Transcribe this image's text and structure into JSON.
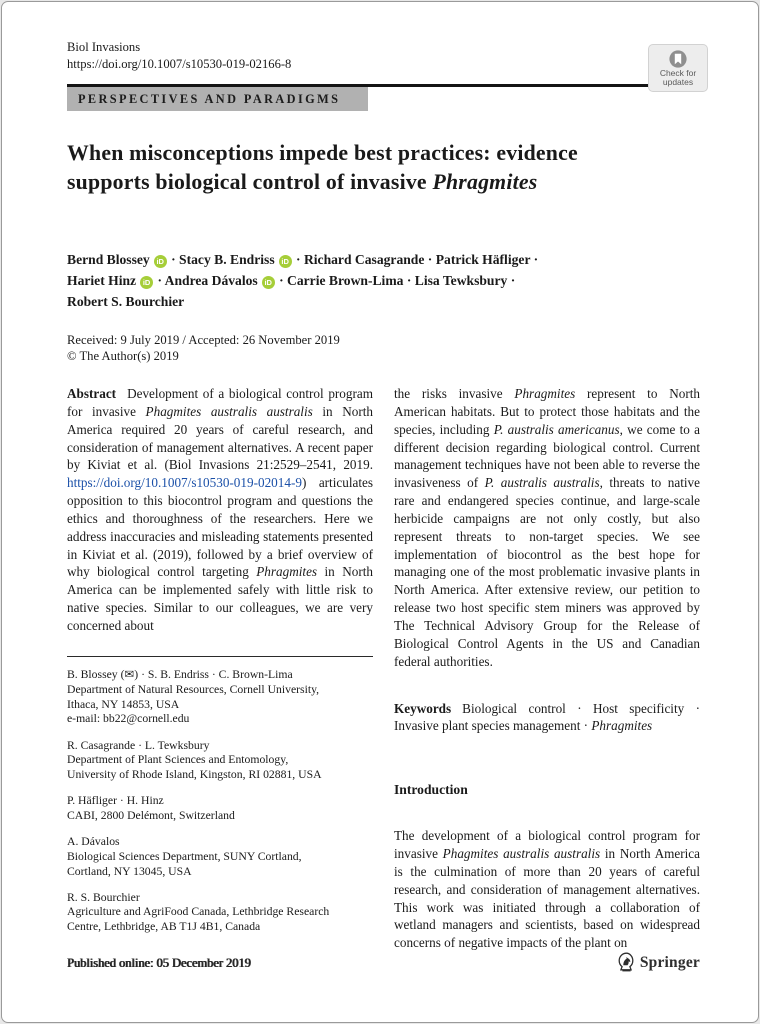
{
  "colors": {
    "link_blue": "#1b50a8",
    "orcid_green": "#a6ce39",
    "banner_gray": "#b1b1b1",
    "rule_black": "#141414"
  },
  "header": {
    "journal": "Biol Invasions",
    "doi": "https://doi.org/10.1007/s10530-019-02166-8",
    "check_updates_line1": "Check for",
    "check_updates_line2": "updates",
    "section_banner": "PERSPECTIVES AND PARADIGMS"
  },
  "title": {
    "line1": [
      {
        "t": "When misconceptions impede best practices: evidence"
      }
    ],
    "line2": [
      {
        "t": "supports biological control of invasive "
      },
      {
        "t": "Phragmites",
        "i": true
      }
    ]
  },
  "authors": {
    "line1": [
      {
        "t": "Bernd Blossey"
      },
      {
        "icon": "orcid"
      },
      {
        "t": " · Stacy B. Endriss"
      },
      {
        "icon": "orcid"
      },
      {
        "t": " · Richard Casagrande · Patrick Häfliger ·"
      }
    ],
    "line2": [
      {
        "t": "Hariet Hinz"
      },
      {
        "icon": "orcid"
      },
      {
        "t": " · Andrea Dávalos"
      },
      {
        "icon": "orcid"
      },
      {
        "t": " · Carrie Brown-Lima · Lisa Tewksbury ·"
      }
    ],
    "line3": [
      {
        "t": "Robert S. Bourchier"
      }
    ]
  },
  "dates": {
    "received_line": "Received: 9 July 2019 / Accepted: 26 November 2019",
    "copyright_line": "© The Author(s) 2019"
  },
  "abstract": {
    "label": "Abstract",
    "left_column": [
      {
        "t": "Development of a biological control program for invasive "
      },
      {
        "t": "Phagmites australis australis",
        "i": true
      },
      {
        "t": " in North America required 20 years of careful research, and consideration of management alternatives. A recent paper by Kiviat et al. (Biol Invasions 21:2529–2541, 2019. "
      },
      {
        "t": "https://doi.org/10.1007/s10530-019-02014-9",
        "link": true
      },
      {
        "t": ") articulates opposition to this biocontrol program and questions the ethics and thoroughness of the researchers. Here we address inaccuracies and misleading statements presented in Kiviat et al. (2019), followed by a brief overview of why biological control targeting "
      },
      {
        "t": "Phragmites",
        "i": true
      },
      {
        "t": " in North America can be implemented safely with little risk to native species. Similar to our colleagues, we are very concerned about"
      }
    ],
    "right_column": [
      {
        "t": "the risks invasive "
      },
      {
        "t": "Phragmites",
        "i": true
      },
      {
        "t": " represent to North American habitats. But to protect those habitats and the species, including "
      },
      {
        "t": "P. australis americanus",
        "i": true
      },
      {
        "t": ", we come to a different decision regarding biological control. Current management techniques have not been able to reverse the invasiveness of "
      },
      {
        "t": "P. australis australis",
        "i": true
      },
      {
        "t": ", threats to native rare and endangered species continue, and large-scale herbicide campaigns are not only costly, but also represent threats to non-target species. We see implementation of biocontrol as the best hope for managing one of the most problematic invasive plants in North America. After extensive review, our petition to release two host specific stem miners was approved by The Technical Advisory Group for the Release of Biological Control Agents in the US and Canadian federal authorities."
      }
    ]
  },
  "keywords": {
    "label": "Keywords",
    "segments": [
      {
        "t": "Biological control · Host specificity · Invasive plant species management · "
      },
      {
        "t": "Phragmites",
        "i": true
      }
    ]
  },
  "introduction": {
    "heading": "Introduction",
    "paragraph": [
      {
        "t": "The development of a biological control program for invasive "
      },
      {
        "t": "Phagmites australis australis",
        "i": true
      },
      {
        "t": " in North America is the culmination of more than 20 years of careful research, and consideration of management alternatives. This work was initiated through a collaboration of wetland managers and scientists, based on widespread concerns of negative impacts of the plant on"
      }
    ]
  },
  "affiliations": [
    {
      "text": "B. Blossey (✉) · S. B. Endriss · C. Brown-Lima\nDepartment of Natural Resources, Cornell University,\nIthaca, NY 14853, USA\ne-mail: bb22@cornell.edu"
    },
    {
      "text": "R. Casagrande · L. Tewksbury\nDepartment of Plant Sciences and Entomology,\nUniversity of Rhode Island, Kingston, RI 02881, USA"
    },
    {
      "text": "P. Häfliger · H. Hinz\nCABI, 2800 Delémont, Switzerland"
    },
    {
      "text": "A. Dávalos\nBiological Sciences Department, SUNY Cortland,\nCortland, NY 13045, USA"
    },
    {
      "text": "R. S. Bourchier\nAgriculture and AgriFood Canada, Lethbridge Research\nCentre, Lethbridge, AB T1J 4B1, Canada"
    }
  ],
  "footer": {
    "published_online": "Published online: 05 December 2019",
    "publisher": "Springer"
  }
}
